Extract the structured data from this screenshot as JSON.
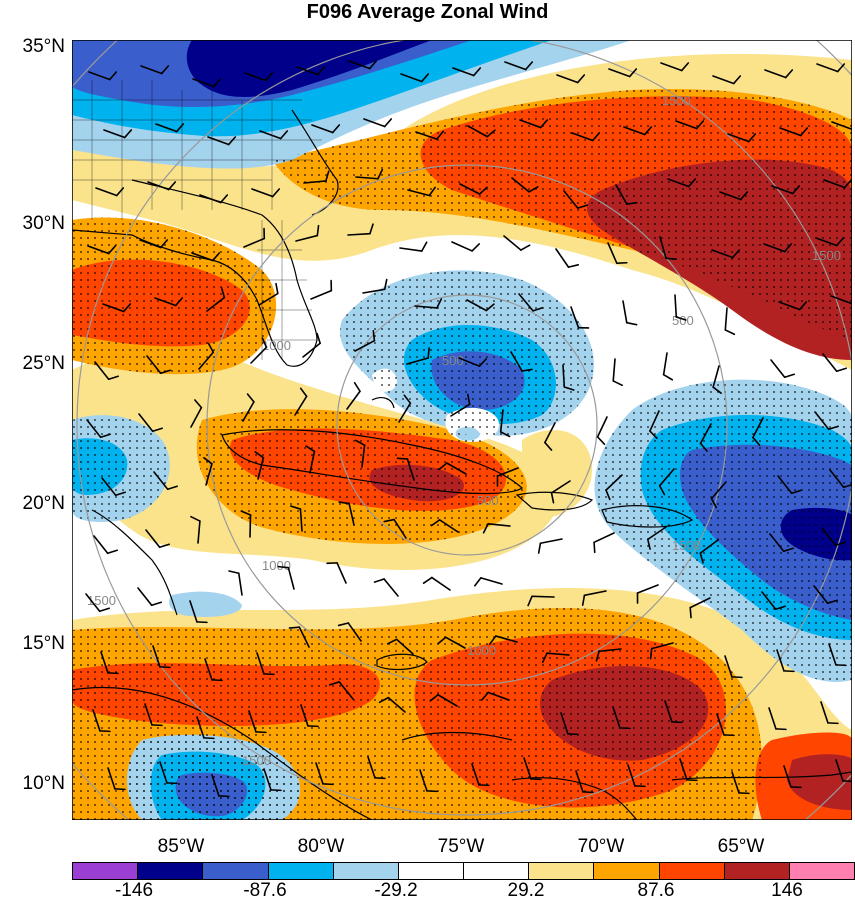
{
  "title": "F096 Average Zonal Wind",
  "lat_labels": [
    "35°N",
    "30°N",
    "25°N",
    "20°N",
    "15°N",
    "10°N"
  ],
  "lon_labels": [
    "85°W",
    "80°W",
    "75°W",
    "70°W",
    "65°W"
  ],
  "contour_labels": [
    "1500",
    "500",
    "1000",
    "1500",
    "1000",
    "500",
    "1500",
    "1500",
    "1000",
    "500",
    "1500"
  ],
  "colorbar": {
    "colors": [
      "#9a3fd1",
      "#00008b",
      "#3a5fcd",
      "#00b2ee",
      "#a4d3ee",
      "#ffffff",
      "#ffffff",
      "#fbe38c",
      "#ffa500",
      "#ff4500",
      "#b22222",
      "#ff7fb0"
    ],
    "labels": [
      "-146",
      "-87.6",
      "-29.2",
      "29.2",
      "87.6",
      "146"
    ]
  }
}
